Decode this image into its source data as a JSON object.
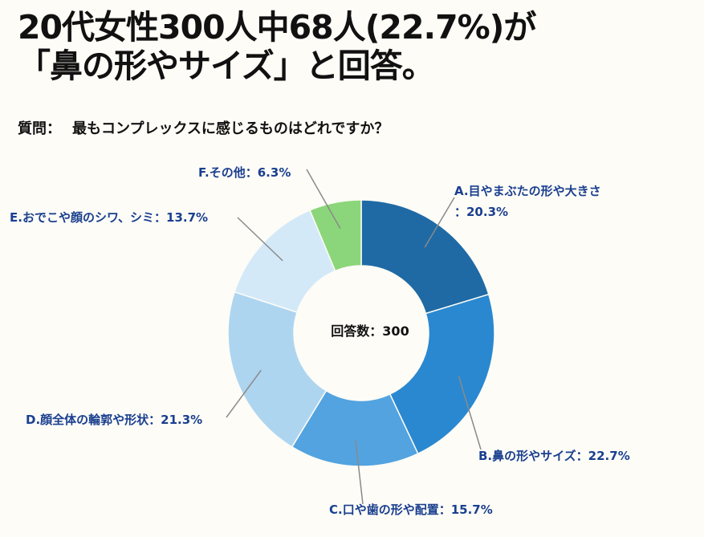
{
  "title": {
    "line1": "20代女性300人中68人(22.7%)が",
    "line2": "「鼻の形やサイズ」と回答。"
  },
  "question": {
    "label": "質問：",
    "text": "最もコンプレックスに感じるものはどれですか？"
  },
  "chart_data": {
    "type": "donut",
    "center_text": "回答数：300",
    "total": 300,
    "slices": [
      {
        "label": "A.目やまぶたの形や大きさ",
        "percent_text": "：20.3%",
        "value": 20.3,
        "color": "#1f6aa5"
      },
      {
        "label": "B.鼻の形やサイズ",
        "percent_text": "：22.7%",
        "value": 22.7,
        "color": "#2a88d0"
      },
      {
        "label": "C.口や歯の形や配置",
        "percent_text": "：15.7%",
        "value": 15.7,
        "color": "#52a3e0"
      },
      {
        "label": "D.顔全体の輪郭や形状",
        "percent_text": "：21.3%",
        "value": 21.3,
        "color": "#aed5f0"
      },
      {
        "label": "E.おでこや顔のシワ、シミ",
        "percent_text": "：13.7%",
        "value": 13.7,
        "color": "#d4e9f8"
      },
      {
        "label": "F.その他",
        "percent_text": "：6.3%",
        "value": 6.3,
        "color": "#8bd67a"
      }
    ],
    "label_color": "#1a3f8f",
    "leader_color": "#8a8a8a"
  }
}
